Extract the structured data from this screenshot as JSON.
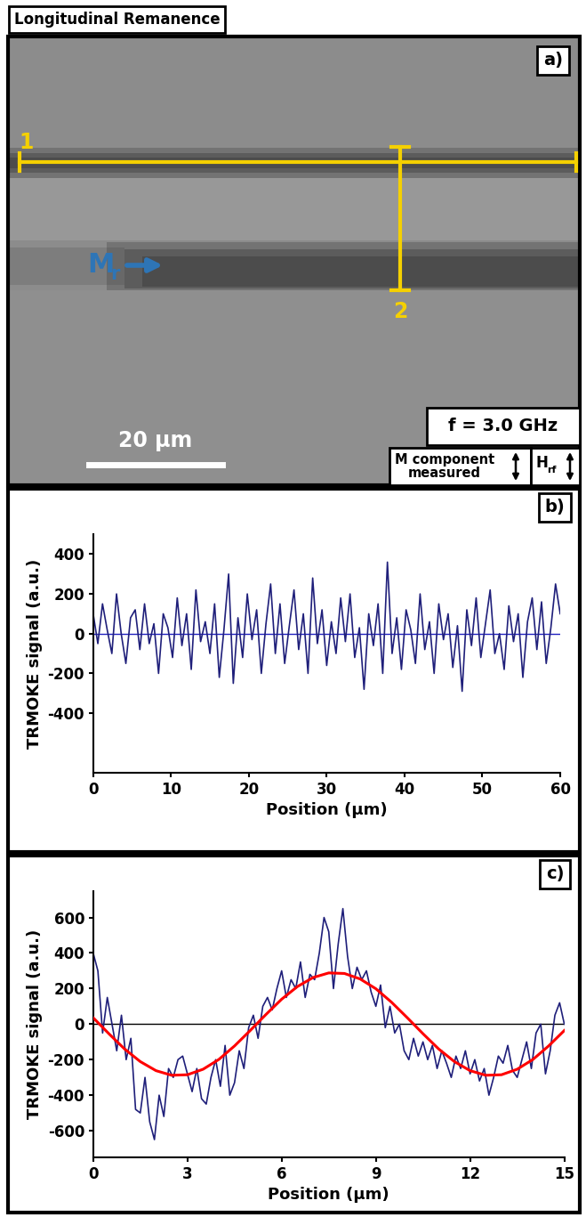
{
  "header": {
    "title": "Longitudinal Remanence"
  },
  "image_panel": {
    "panel_label": "a)",
    "line_labels": [
      "1",
      "2"
    ],
    "magnetization": {
      "text": "M",
      "subscript": "r"
    },
    "scale_bar": "20 µm",
    "frequency": "f = 3.0 GHz",
    "measured": "M component\nmeasured",
    "field": {
      "text": "H",
      "subscript": "rf"
    }
  },
  "chart_data": [
    {
      "type": "line",
      "panel_label": "b)",
      "x_label": "Position (µm)",
      "y_label": "TRMOKE signal (a.u.)",
      "xlim": [
        0,
        60
      ],
      "xticks": [
        0,
        10,
        20,
        30,
        40,
        50,
        60
      ],
      "ylim": [
        -700,
        500
      ],
      "yticks": [
        -400,
        -200,
        0,
        200,
        400
      ],
      "zero_line": {
        "value": 0,
        "color": "#2020c0"
      },
      "series": [
        {
          "color": "#1f1f7a",
          "x": [
            0,
            0.6,
            1.2,
            1.8,
            2.4,
            3,
            3.6,
            4.2,
            4.8,
            5.4,
            6,
            6.6,
            7.2,
            7.8,
            8.4,
            9,
            9.6,
            10.2,
            10.8,
            11.4,
            12,
            12.6,
            13.2,
            13.8,
            14.4,
            15,
            15.6,
            16.2,
            16.8,
            17.4,
            18,
            18.6,
            19.2,
            19.8,
            20.4,
            21,
            21.6,
            22.2,
            22.8,
            23.4,
            24,
            24.6,
            25.2,
            25.8,
            26.4,
            27,
            27.6,
            28.2,
            28.8,
            29.4,
            30,
            30.6,
            31.2,
            31.8,
            32.4,
            33,
            33.6,
            34.2,
            34.8,
            35.4,
            36,
            36.6,
            37.2,
            37.8,
            38.4,
            39,
            39.6,
            40.2,
            40.8,
            41.4,
            42,
            42.6,
            43.2,
            43.8,
            44.4,
            45,
            45.6,
            46.2,
            46.8,
            47.4,
            48,
            48.6,
            49.2,
            49.8,
            50.4,
            51,
            51.6,
            52.2,
            52.8,
            53.4,
            54,
            54.6,
            55.2,
            55.8,
            56.4,
            57,
            57.6,
            58.2,
            58.8,
            59.4,
            60
          ],
          "values": [
            100,
            -50,
            150,
            20,
            -100,
            200,
            0,
            -150,
            80,
            120,
            -80,
            150,
            -50,
            50,
            -200,
            100,
            30,
            -120,
            180,
            -60,
            100,
            -180,
            220,
            -40,
            60,
            -100,
            150,
            -220,
            20,
            300,
            -250,
            80,
            -120,
            200,
            -30,
            120,
            -200,
            50,
            250,
            -100,
            150,
            -150,
            40,
            220,
            -80,
            100,
            -200,
            280,
            -50,
            120,
            -160,
            60,
            -100,
            180,
            -40,
            200,
            -120,
            30,
            -280,
            100,
            -60,
            150,
            -200,
            360,
            -100,
            80,
            -180,
            120,
            20,
            -150,
            200,
            -80,
            60,
            -200,
            150,
            -30,
            100,
            -170,
            40,
            -290,
            120,
            -60,
            180,
            -120,
            50,
            220,
            -100,
            0,
            -180,
            140,
            -40,
            100,
            -220,
            60,
            180,
            -80,
            160,
            -150,
            30,
            250,
            100
          ]
        }
      ]
    },
    {
      "type": "line",
      "panel_label": "c)",
      "x_label": "Position (µm)",
      "y_label": "TRMOKE signal (a.u.)",
      "xlim": [
        0,
        15
      ],
      "xticks": [
        0,
        3,
        6,
        9,
        12,
        15
      ],
      "ylim": [
        -750,
        750
      ],
      "yticks": [
        -600,
        -400,
        -200,
        0,
        200,
        400,
        600
      ],
      "zero_line": {
        "value": 0,
        "color": "#000000"
      },
      "series": [
        {
          "color": "#1f1f7a",
          "x": [
            0,
            0.15,
            0.3,
            0.45,
            0.6,
            0.75,
            0.9,
            1.05,
            1.2,
            1.35,
            1.5,
            1.65,
            1.8,
            1.95,
            2.1,
            2.25,
            2.4,
            2.55,
            2.7,
            2.85,
            3,
            3.15,
            3.3,
            3.45,
            3.6,
            3.75,
            3.9,
            4.05,
            4.2,
            4.35,
            4.5,
            4.65,
            4.8,
            4.95,
            5.1,
            5.25,
            5.4,
            5.55,
            5.7,
            5.85,
            6,
            6.15,
            6.3,
            6.45,
            6.6,
            6.75,
            6.9,
            7.05,
            7.2,
            7.35,
            7.5,
            7.65,
            7.8,
            7.95,
            8.1,
            8.25,
            8.4,
            8.55,
            8.7,
            8.85,
            9,
            9.15,
            9.3,
            9.45,
            9.6,
            9.75,
            9.9,
            10.05,
            10.2,
            10.35,
            10.5,
            10.65,
            10.8,
            10.95,
            11.1,
            11.25,
            11.4,
            11.55,
            11.7,
            11.85,
            12,
            12.15,
            12.3,
            12.45,
            12.6,
            12.75,
            12.9,
            13.05,
            13.2,
            13.35,
            13.5,
            13.65,
            13.8,
            13.95,
            14.1,
            14.25,
            14.4,
            14.55,
            14.7,
            14.85,
            15
          ],
          "values": [
            400,
            300,
            -50,
            150,
            0,
            -150,
            50,
            -200,
            -80,
            -480,
            -500,
            -300,
            -550,
            -650,
            -400,
            -520,
            -250,
            -300,
            -200,
            -180,
            -280,
            -380,
            -250,
            -420,
            -450,
            -300,
            -200,
            -350,
            -120,
            -400,
            -330,
            -150,
            -250,
            -20,
            50,
            -80,
            100,
            150,
            80,
            200,
            300,
            150,
            250,
            200,
            350,
            150,
            280,
            250,
            400,
            600,
            520,
            200,
            450,
            650,
            380,
            200,
            320,
            250,
            300,
            180,
            100,
            220,
            -20,
            100,
            -50,
            0,
            -150,
            -200,
            -80,
            -180,
            -100,
            -200,
            -120,
            -250,
            -150,
            -220,
            -300,
            -180,
            -250,
            -150,
            -280,
            -200,
            -320,
            -250,
            -400,
            -300,
            -180,
            -220,
            -120,
            -260,
            -300,
            -200,
            -100,
            -250,
            -50,
            0,
            -280,
            -150,
            50,
            120,
            0
          ]
        },
        {
          "color": "#ff0000",
          "x": [
            0,
            0.5,
            1,
            1.5,
            2,
            2.5,
            3,
            3.5,
            4,
            4.5,
            5,
            5.5,
            6,
            6.5,
            7,
            7.5,
            8,
            8.5,
            9,
            9.5,
            10,
            10.5,
            11,
            11.5,
            12,
            12.5,
            13,
            13.5,
            14,
            14.5,
            15
          ],
          "values": [
            36,
            -54,
            -140,
            -211,
            -262,
            -288,
            -285,
            -254,
            -199,
            -123,
            -36,
            54,
            140,
            211,
            262,
            288,
            285,
            254,
            199,
            123,
            36,
            -54,
            -140,
            -211,
            -262,
            -288,
            -285,
            -254,
            -199,
            -123,
            -36
          ]
        }
      ]
    }
  ]
}
